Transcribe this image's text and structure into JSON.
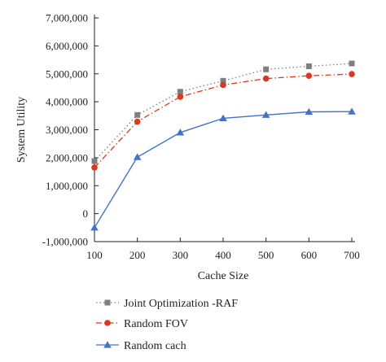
{
  "chart_data": {
    "type": "line",
    "title": "",
    "xlabel": "Cache Size",
    "ylabel": "System Utility",
    "x": [
      100,
      200,
      300,
      400,
      500,
      600,
      700
    ],
    "xlim": [
      100,
      700
    ],
    "ylim": [
      -1000000,
      7000000
    ],
    "xticks": [
      100,
      200,
      300,
      400,
      500,
      600,
      700
    ],
    "xtick_labels": [
      "100",
      "200",
      "300",
      "400",
      "500",
      "600",
      "700"
    ],
    "yticks": [
      -1000000,
      0,
      1000000,
      2000000,
      3000000,
      4000000,
      5000000,
      6000000,
      7000000
    ],
    "ytick_labels": [
      "-1,000,000",
      "0",
      "1,000,000",
      "2,000,000",
      "3,000,000",
      "4,000,000",
      "5,000,000",
      "6,000,000",
      "7,000,000"
    ],
    "grid": false,
    "legend_position": "bottom",
    "series": [
      {
        "name": "Joint Optimization -RAF",
        "values": [
          1880000,
          3530000,
          4360000,
          4750000,
          5160000,
          5270000,
          5370000
        ],
        "color": "#7f7f7f",
        "marker": "square",
        "line_style": "dotted"
      },
      {
        "name": "Random FOV",
        "values": [
          1650000,
          3290000,
          4180000,
          4600000,
          4830000,
          4930000,
          4990000
        ],
        "color": "#d9391e",
        "marker": "circle",
        "line_style": "dash-dot"
      },
      {
        "name": "Random cach",
        "values": [
          -500000,
          2020000,
          2900000,
          3410000,
          3530000,
          3640000,
          3650000
        ],
        "color": "#4472c4",
        "marker": "triangle",
        "line_style": "solid"
      }
    ]
  }
}
